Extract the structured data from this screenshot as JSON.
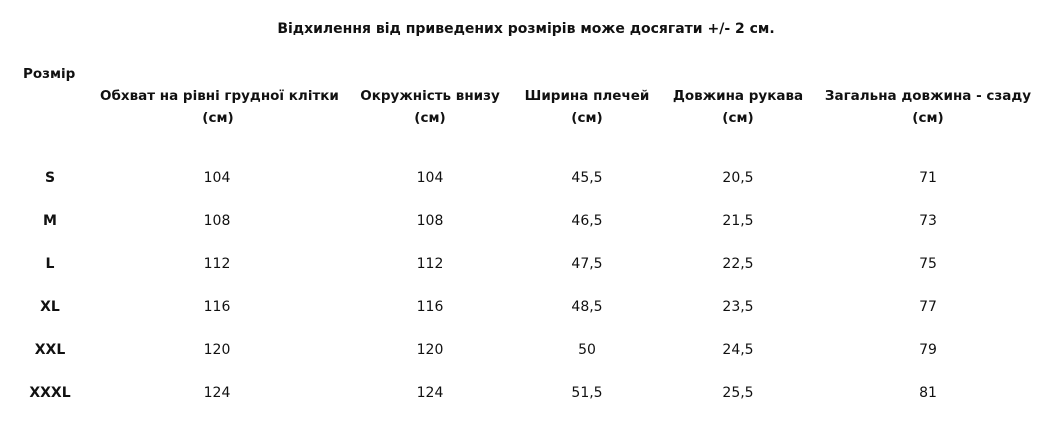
{
  "note": "Відхилення від приведених розмірів може досягати +/- 2 см.",
  "size_header": "Розмір",
  "columns": [
    {
      "label": "Обхват на рівні грудної клітки",
      "unit": "(см)"
    },
    {
      "label": "Окружність внизу",
      "unit": "(см)"
    },
    {
      "label": "Ширина плечей",
      "unit": "(см)"
    },
    {
      "label": "Довжина рукава",
      "unit": "(см)"
    },
    {
      "label": "Загальна довжина - сзаду",
      "unit": "(см)"
    }
  ],
  "rows": [
    {
      "size": "S",
      "values": [
        "104",
        "104",
        "45,5",
        "20,5",
        "71"
      ]
    },
    {
      "size": "M",
      "values": [
        "108",
        "108",
        "46,5",
        "21,5",
        "73"
      ]
    },
    {
      "size": "L",
      "values": [
        "112",
        "112",
        "47,5",
        "22,5",
        "75"
      ]
    },
    {
      "size": "XL",
      "values": [
        "116",
        "116",
        "48,5",
        "23,5",
        "77"
      ]
    },
    {
      "size": "XXL",
      "values": [
        "120",
        "120",
        "50",
        "24,5",
        "79"
      ]
    },
    {
      "size": "XXXL",
      "values": [
        "124",
        "124",
        "51,5",
        "25,5",
        "81"
      ]
    }
  ]
}
